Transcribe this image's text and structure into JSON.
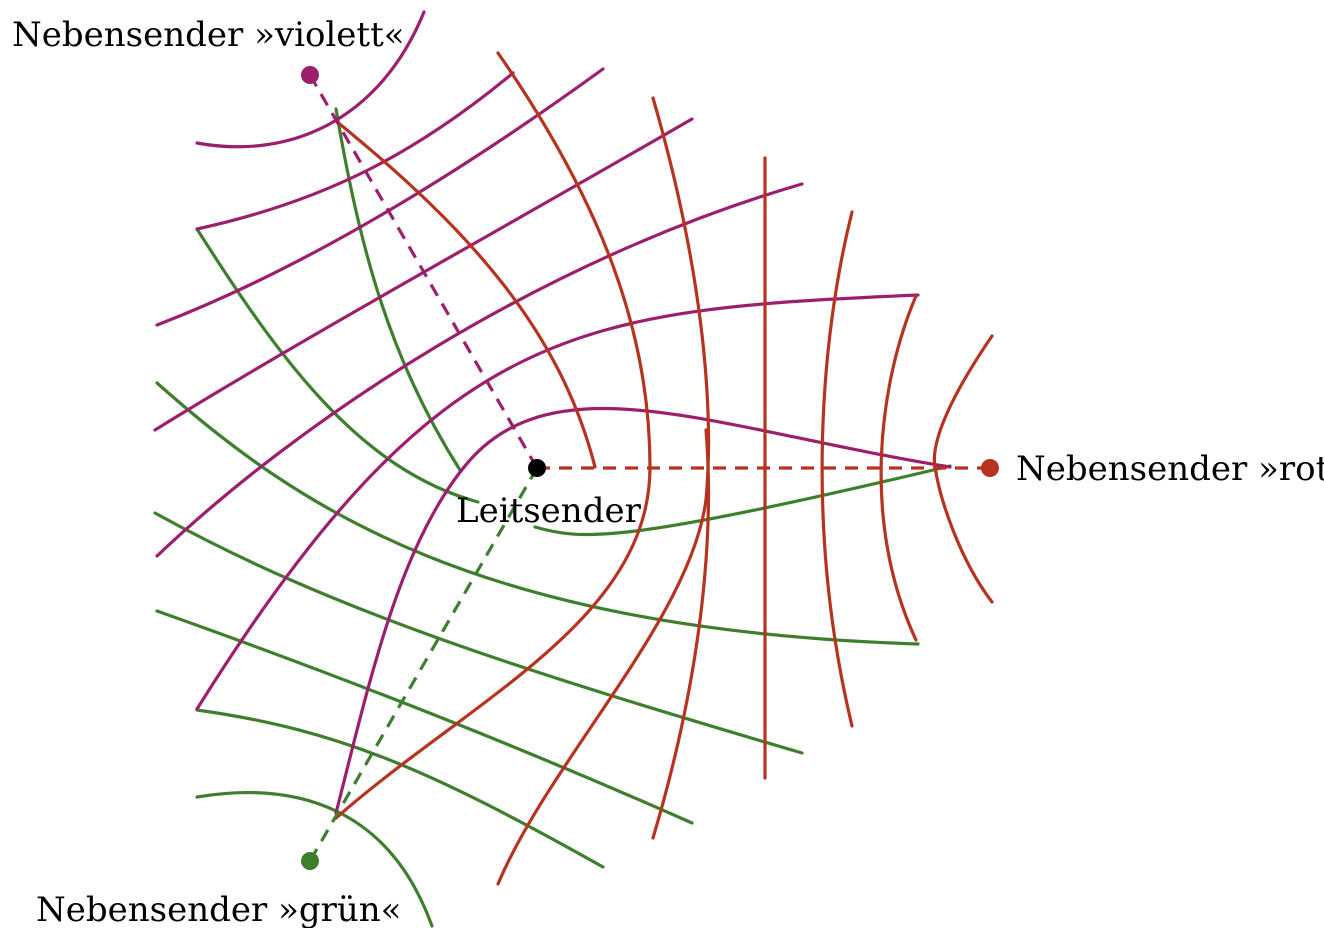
{
  "colors": {
    "violet": "#9c1f6e",
    "red": "#b5331f",
    "green": "#3e7f2e",
    "master": "#000000"
  },
  "stations": {
    "master": {
      "label": "Leitsender"
    },
    "violet": {
      "label": "Nebensender »violett«"
    },
    "red": {
      "label": "Nebensender »rot«"
    },
    "green": {
      "label": "Nebensender »grün«"
    }
  }
}
